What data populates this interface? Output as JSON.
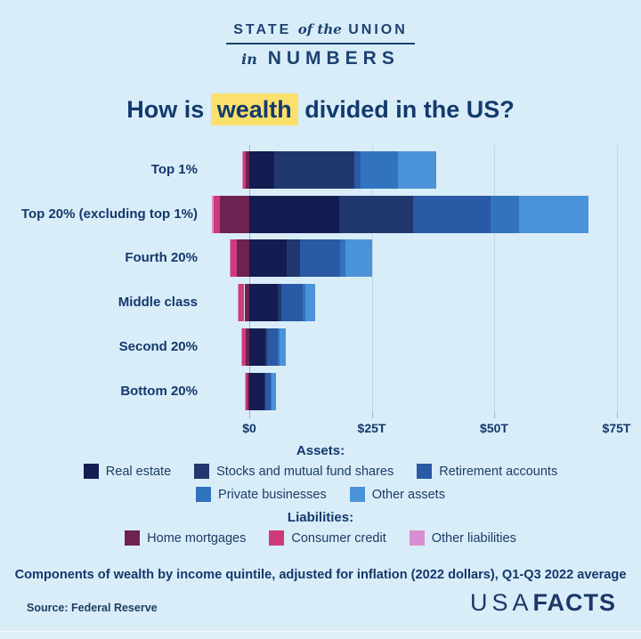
{
  "header": {
    "line1_part1": "STATE",
    "line1_part2": "of the",
    "line1_part3": "UNION",
    "line2_part1": "in",
    "line2_part2": "NUMBERS"
  },
  "title": {
    "prefix": "How is ",
    "highlight": "wealth",
    "suffix": " divided in the US?"
  },
  "colors": {
    "background": "#d9edf9",
    "navy_text": "#14386b",
    "highlight_yellow": "#fbe06d",
    "real_estate": "#141d52",
    "stocks_mutual_funds": "#21386f",
    "retirement_accounts": "#2a5aa5",
    "private_businesses": "#3273bd",
    "other_assets": "#4b93d9",
    "home_mortgages": "#6e2251",
    "consumer_credit": "#d13a79",
    "other_liabilities": "#d78fd0",
    "gridline": "#c3d9e7",
    "zero_line": "#9db4c6"
  },
  "chart_data": {
    "type": "bar",
    "variant": "horizontal-stacked-diverging",
    "title": "How is wealth divided in the US?",
    "unit": "trillions of 2022 US dollars",
    "xlim": [
      -9,
      78
    ],
    "grid": true,
    "x_ticks": [
      {
        "label": "$0",
        "value": 0
      },
      {
        "label": "$25T",
        "value": 25
      },
      {
        "label": "$50T",
        "value": 50
      },
      {
        "label": "$75T",
        "value": 75
      }
    ],
    "categories": [
      "Top 1%",
      "Top 20% (excluding top 1%)",
      "Fourth 20%",
      "Middle class",
      "Second 20%",
      "Bottom 20%"
    ],
    "asset_series_order": [
      "real_estate",
      "stocks_mutual_funds",
      "retirement_accounts",
      "private_businesses",
      "other_assets"
    ],
    "liability_series_order": [
      "home_mortgages",
      "consumer_credit",
      "other_liabilities"
    ],
    "rows": [
      {
        "label": "Top 1%",
        "assets": {
          "real_estate": 5.1,
          "stocks_mutual_funds": 16.4,
          "retirement_accounts": 1.3,
          "private_businesses": 7.6,
          "other_assets": 7.8
        },
        "liabilities": {
          "home_mortgages": 0.8,
          "consumer_credit": 0.4,
          "other_liabilities": 0.2
        }
      },
      {
        "label": "Top 20% (excluding top 1%)",
        "assets": {
          "real_estate": 18.3,
          "stocks_mutual_funds": 15.2,
          "retirement_accounts": 15.8,
          "private_businesses": 5.8,
          "other_assets": 14.2
        },
        "liabilities": {
          "home_mortgages": 6.0,
          "consumer_credit": 1.2,
          "other_liabilities": 0.4
        }
      },
      {
        "label": "Fourth 20%",
        "assets": {
          "real_estate": 7.6,
          "stocks_mutual_funds": 2.7,
          "retirement_accounts": 8.2,
          "private_businesses": 1.2,
          "other_assets": 5.4
        },
        "liabilities": {
          "home_mortgages": 2.5,
          "consumer_credit": 1.3,
          "other_liabilities": 0.2
        }
      },
      {
        "label": "Middle class",
        "assets": {
          "real_estate": 5.8,
          "stocks_mutual_funds": 0.8,
          "retirement_accounts": 4.3,
          "private_businesses": 0.5,
          "other_assets": 2.0
        },
        "liabilities": {
          "home_mortgages": 1.0,
          "consumer_credit": 1.2,
          "other_liabilities": 0.2
        }
      },
      {
        "label": "Second 20%",
        "assets": {
          "real_estate": 3.3,
          "stocks_mutual_funds": 0.4,
          "retirement_accounts": 2.1,
          "private_businesses": 0.3,
          "other_assets": 1.4
        },
        "liabilities": {
          "home_mortgages": 0.7,
          "consumer_credit": 0.8,
          "other_liabilities": 0.2
        }
      },
      {
        "label": "Bottom 20%",
        "assets": {
          "real_estate": 3.0,
          "stocks_mutual_funds": 0.2,
          "retirement_accounts": 1.2,
          "private_businesses": 0.2,
          "other_assets": 0.8
        },
        "liabilities": {
          "home_mortgages": 0.4,
          "consumer_credit": 0.4,
          "other_liabilities": 0.1
        }
      }
    ]
  },
  "legend": {
    "assets_label": "Assets:",
    "liabilities_label": "Liabilities:",
    "assets": [
      {
        "key": "real_estate",
        "label": "Real estate"
      },
      {
        "key": "stocks_mutual_funds",
        "label": "Stocks and mutual fund shares"
      },
      {
        "key": "retirement_accounts",
        "label": "Retirement accounts"
      },
      {
        "key": "private_businesses",
        "label": "Private businesses"
      },
      {
        "key": "other_assets",
        "label": "Other assets"
      }
    ],
    "liabilities": [
      {
        "key": "home_mortgages",
        "label": "Home mortgages"
      },
      {
        "key": "consumer_credit",
        "label": "Consumer credit"
      },
      {
        "key": "other_liabilities",
        "label": "Other liabilities"
      }
    ]
  },
  "caption": "Components of wealth by income quintile, adjusted for inflation (2022 dollars), Q1-Q3 2022 average",
  "source": "Source: Federal Reserve",
  "logo": {
    "part1": "USA",
    "part2": "FACTS"
  }
}
